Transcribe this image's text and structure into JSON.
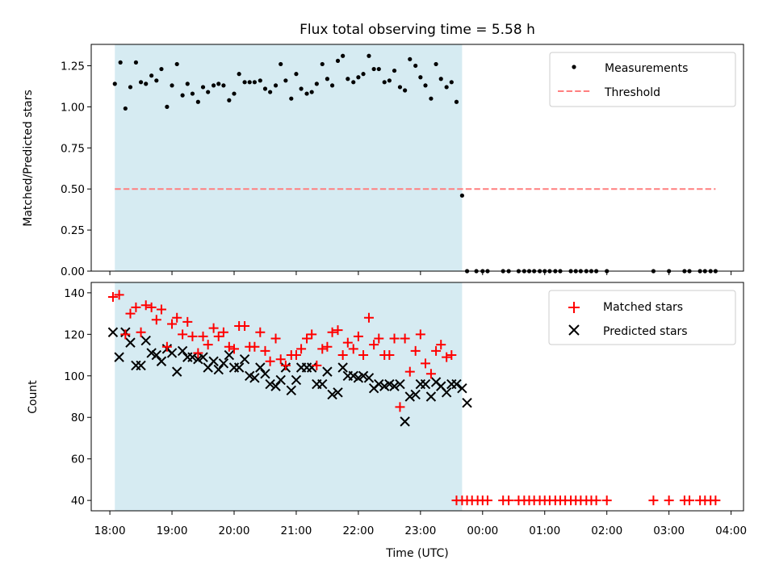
{
  "colors": {
    "measurement": "#000000",
    "threshold": "#ff7f7f",
    "matched": "#ff0000",
    "predicted": "#000000",
    "shade": "#add8e6"
  },
  "chart_data": [
    {
      "type": "scatter",
      "title": "Flux total observing time = 5.58 h",
      "xlabel": "",
      "ylabel": "Matched/Predicted stars",
      "xlim_hours": [
        17.7,
        28.2
      ],
      "ylim": [
        0,
        1.38
      ],
      "yticks": [
        0,
        0.25,
        0.5,
        0.75,
        1.0,
        1.25
      ],
      "ytick_labels": [
        "0.00",
        "0.25",
        "0.50",
        "0.75",
        "1.00",
        "1.25"
      ],
      "shaded_interval_hours": [
        18.08,
        23.67
      ],
      "threshold": {
        "value": 0.5,
        "x_range_hours": [
          18.08,
          27.75
        ]
      },
      "legend": {
        "position": "top-right",
        "measurements": "Measurements",
        "threshold": "Threshold"
      },
      "measurements": {
        "x_hours": [
          18.08,
          18.17,
          18.25,
          18.33,
          18.42,
          18.5,
          18.58,
          18.67,
          18.75,
          18.83,
          18.92,
          19.0,
          19.08,
          19.17,
          19.25,
          19.33,
          19.42,
          19.5,
          19.58,
          19.67,
          19.75,
          19.83,
          19.92,
          20.0,
          20.08,
          20.17,
          20.25,
          20.33,
          20.42,
          20.5,
          20.58,
          20.67,
          20.75,
          20.83,
          20.92,
          21.0,
          21.08,
          21.17,
          21.25,
          21.33,
          21.42,
          21.5,
          21.58,
          21.67,
          21.75,
          21.83,
          21.92,
          22.0,
          22.08,
          22.17,
          22.25,
          22.33,
          22.42,
          22.5,
          22.58,
          22.67,
          22.75,
          22.83,
          22.92,
          23.0,
          23.08,
          23.17,
          23.25,
          23.33,
          23.42,
          23.5,
          23.58,
          23.67,
          23.75,
          23.9,
          24.0,
          24.08,
          24.33,
          24.42,
          24.58,
          24.67,
          24.75,
          24.83,
          24.92,
          25.0,
          25.08,
          25.17,
          25.25,
          25.42,
          25.5,
          25.58,
          25.67,
          25.75,
          25.83,
          26.0,
          26.75,
          27.0,
          27.25,
          27.33,
          27.5,
          27.58,
          27.67,
          27.75
        ],
        "y": [
          1.14,
          1.27,
          0.99,
          1.12,
          1.27,
          1.15,
          1.14,
          1.19,
          1.16,
          1.23,
          1.0,
          1.13,
          1.26,
          1.07,
          1.14,
          1.08,
          1.03,
          1.12,
          1.09,
          1.13,
          1.14,
          1.13,
          1.04,
          1.08,
          1.2,
          1.15,
          1.15,
          1.15,
          1.16,
          1.11,
          1.09,
          1.13,
          1.26,
          1.16,
          1.05,
          1.2,
          1.11,
          1.08,
          1.09,
          1.14,
          1.26,
          1.17,
          1.13,
          1.28,
          1.31,
          1.17,
          1.15,
          1.18,
          1.2,
          1.31,
          1.23,
          1.23,
          1.15,
          1.16,
          1.22,
          1.12,
          1.1,
          1.29,
          1.25,
          1.18,
          1.13,
          1.05,
          1.26,
          1.17,
          1.12,
          1.15,
          1.03,
          0.46,
          0.0,
          0.0,
          0.0,
          0.0,
          0.0,
          0.0,
          0.0,
          0.0,
          0.0,
          0.0,
          0.0,
          0.0,
          0.0,
          0.0,
          0.0,
          0.0,
          0.0,
          0.0,
          0.0,
          0.0,
          0.0,
          0.0,
          0.0,
          0.0,
          0.0,
          0.0,
          0.0,
          0.0,
          0.0,
          0.0
        ]
      }
    },
    {
      "type": "scatter",
      "xlabel": "Time (UTC)",
      "ylabel": "Count",
      "xlim_hours": [
        17.7,
        28.2
      ],
      "ylim": [
        35,
        145
      ],
      "yticks": [
        40,
        60,
        80,
        100,
        120,
        140
      ],
      "ytick_labels": [
        "40",
        "60",
        "80",
        "100",
        "120",
        "140"
      ],
      "xticks_hours": [
        18,
        19,
        20,
        21,
        22,
        23,
        24,
        25,
        26,
        27,
        28
      ],
      "xtick_labels": [
        "18:00",
        "19:00",
        "20:00",
        "21:00",
        "22:00",
        "23:00",
        "00:00",
        "01:00",
        "02:00",
        "03:00",
        "04:00"
      ],
      "shaded_interval_hours": [
        18.08,
        23.67
      ],
      "legend": {
        "position": "top-right",
        "matched": "Matched stars",
        "predicted": "Predicted stars"
      },
      "matched_stars": {
        "x_hours": [
          18.05,
          18.15,
          18.25,
          18.33,
          18.42,
          18.5,
          18.58,
          18.67,
          18.75,
          18.83,
          18.92,
          19.0,
          19.08,
          19.17,
          19.25,
          19.33,
          19.42,
          19.5,
          19.58,
          19.67,
          19.75,
          19.83,
          19.92,
          20.0,
          20.08,
          20.17,
          20.25,
          20.33,
          20.42,
          20.5,
          20.58,
          20.67,
          20.75,
          20.83,
          20.92,
          21.0,
          21.08,
          21.17,
          21.25,
          21.33,
          21.42,
          21.5,
          21.58,
          21.67,
          21.75,
          21.83,
          21.92,
          22.0,
          22.08,
          22.17,
          22.25,
          22.33,
          22.42,
          22.5,
          22.58,
          22.67,
          22.75,
          22.83,
          22.92,
          23.0,
          23.08,
          23.17,
          23.25,
          23.33,
          23.42,
          23.5,
          23.58,
          23.67,
          23.75,
          23.83,
          23.92,
          24.0,
          24.08,
          24.33,
          24.42,
          24.58,
          24.67,
          24.75,
          24.83,
          24.92,
          25.0,
          25.08,
          25.17,
          25.25,
          25.33,
          25.42,
          25.5,
          25.58,
          25.67,
          25.75,
          25.83,
          26.0,
          26.75,
          27.0,
          27.25,
          27.33,
          27.5,
          27.58,
          27.67,
          27.75
        ],
        "y": [
          138,
          139,
          120,
          130,
          133,
          121,
          134,
          133,
          127,
          132,
          114,
          125,
          128,
          120,
          126,
          119,
          111,
          119,
          115,
          123,
          119,
          121,
          114,
          113,
          124,
          124,
          114,
          114,
          121,
          112,
          107,
          118,
          108,
          105,
          110,
          110,
          113,
          118,
          120,
          105,
          113,
          114,
          121,
          122,
          110,
          116,
          113,
          119,
          110,
          128,
          115,
          118,
          110,
          110,
          118,
          85,
          118,
          102,
          112,
          120,
          106,
          101,
          112,
          115,
          109,
          110,
          40,
          40,
          40,
          40,
          40,
          40,
          40,
          40,
          40,
          40,
          40,
          40,
          40,
          40,
          40,
          40,
          40,
          40,
          40,
          40,
          40,
          40,
          40,
          40,
          40,
          40,
          40,
          40,
          40,
          40,
          40,
          40,
          40,
          40
        ]
      },
      "predicted_stars": {
        "x_hours": [
          18.05,
          18.15,
          18.25,
          18.33,
          18.42,
          18.5,
          18.58,
          18.67,
          18.75,
          18.83,
          18.92,
          19.0,
          19.08,
          19.17,
          19.25,
          19.33,
          19.42,
          19.5,
          19.58,
          19.67,
          19.75,
          19.83,
          19.92,
          20.0,
          20.08,
          20.17,
          20.25,
          20.33,
          20.42,
          20.5,
          20.58,
          20.67,
          20.75,
          20.83,
          20.92,
          21.0,
          21.08,
          21.17,
          21.25,
          21.33,
          21.42,
          21.5,
          21.58,
          21.67,
          21.75,
          21.83,
          21.92,
          22.0,
          22.08,
          22.17,
          22.25,
          22.33,
          22.42,
          22.5,
          22.58,
          22.67,
          22.75,
          22.83,
          22.92,
          23.0,
          23.08,
          23.17,
          23.25,
          23.33,
          23.42,
          23.5,
          23.58,
          23.67,
          23.75
        ],
        "y": [
          121,
          109,
          121,
          116,
          105,
          105,
          117,
          111,
          110,
          107,
          113,
          111,
          102,
          112,
          109,
          109,
          108,
          109,
          104,
          107,
          103,
          106,
          110,
          104,
          104,
          108,
          100,
          99,
          104,
          101,
          96,
          95,
          98,
          104,
          93,
          98,
          104,
          104,
          104,
          96,
          96,
          102,
          91,
          92,
          104,
          100,
          100,
          99,
          100,
          99,
          94,
          96,
          95,
          96,
          95,
          96,
          78,
          90,
          91,
          96,
          96,
          90,
          97,
          95,
          92,
          96,
          96,
          94,
          87
        ]
      }
    }
  ]
}
